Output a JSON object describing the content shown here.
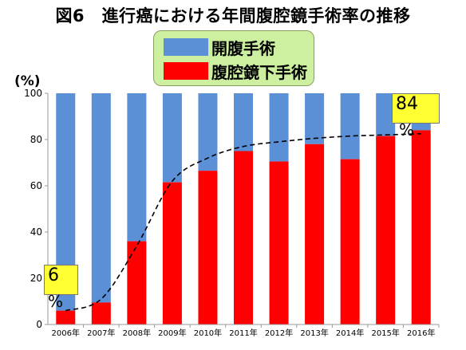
{
  "chart_data": {
    "type": "bar",
    "stacked": true,
    "title": "図6　進行癌における年間腹腔鏡手術率の推移",
    "ylabel": "(%)",
    "ylim": [
      0,
      100
    ],
    "yticks": [
      0,
      20,
      40,
      60,
      80,
      100
    ],
    "categories": [
      "2006年",
      "2007年",
      "2008年",
      "2009年",
      "2010年",
      "2011年",
      "2012年",
      "2013年",
      "2014年",
      "2015年",
      "2016年"
    ],
    "series": [
      {
        "name": "腹腔鏡下手術",
        "color": "#ff0000",
        "values": [
          6,
          9.5,
          36,
          61.5,
          66.5,
          75,
          70.5,
          78,
          71.5,
          81.5,
          84
        ]
      },
      {
        "name": "開腹手術",
        "color": "#5b8fd6",
        "values": [
          94,
          90.5,
          64,
          38.5,
          33.5,
          25,
          29.5,
          22,
          28.5,
          18.5,
          16
        ]
      }
    ],
    "trendline": {
      "style": "dashed",
      "color": "#000000",
      "values": [
        6,
        11,
        34,
        62,
        72,
        77,
        79,
        80.5,
        81.5,
        82,
        82.5
      ]
    },
    "annotations": [
      {
        "number": "6",
        "unit": "%",
        "category": "2006年",
        "value": 6,
        "background": "#ffff33"
      },
      {
        "number": "84",
        "unit": "%",
        "category": "2016年",
        "value": 84,
        "background": "#ffff33"
      }
    ],
    "legend": {
      "placement": "top-center",
      "background": "#ccf0a0",
      "items": [
        {
          "label": "開腹手術",
          "color": "#5b8fd6"
        },
        {
          "label": "腹腔鏡下手術",
          "color": "#ff0000"
        }
      ]
    },
    "grid": false
  }
}
